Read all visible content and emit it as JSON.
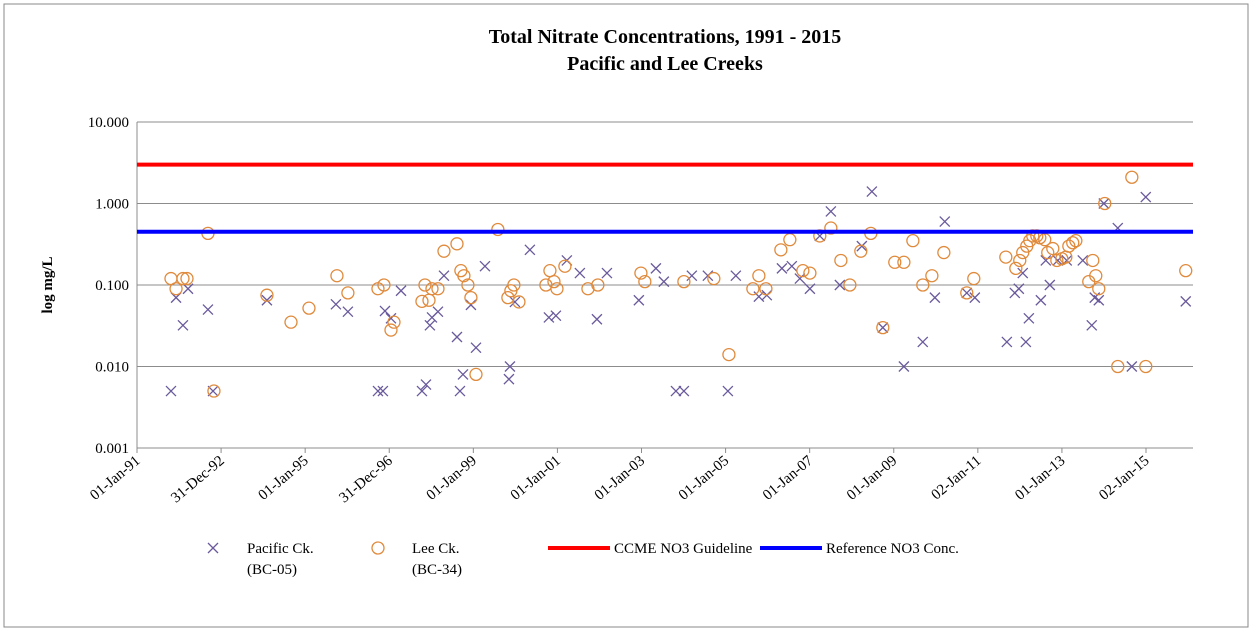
{
  "chart_data": {
    "type": "scatter",
    "title": "Total Nitrate Concentrations, 1991 - 2015",
    "subtitle": "Pacific and Lee Creeks",
    "y_label": "log mg/L",
    "y_log": true,
    "grid": true,
    "legend": "bottom",
    "xlim": [
      33239,
      42407
    ],
    "xticks": [
      {
        "value": 33239,
        "label": "01-Jan-91"
      },
      {
        "value": 33969,
        "label": "31-Dec-92"
      },
      {
        "value": 34699,
        "label": "01-Jan-95"
      },
      {
        "value": 35429,
        "label": "31-Dec-96"
      },
      {
        "value": 36159,
        "label": "01-Jan-99"
      },
      {
        "value": 36889,
        "label": "01-Jan-01"
      },
      {
        "value": 37619,
        "label": "01-Jan-03"
      },
      {
        "value": 38349,
        "label": "01-Jan-05"
      },
      {
        "value": 39079,
        "label": "01-Jan-07"
      },
      {
        "value": 39809,
        "label": "01-Jan-09"
      },
      {
        "value": 40539,
        "label": "02-Jan-11"
      },
      {
        "value": 41269,
        "label": "01-Jan-13"
      },
      {
        "value": 41999,
        "label": "02-Jan-15"
      }
    ],
    "ylim": [
      0.001,
      10
    ],
    "yticks": [
      {
        "value": 0.001,
        "label": "0.001"
      },
      {
        "value": 0.01,
        "label": "0.010"
      },
      {
        "value": 0.1,
        "label": "0.100"
      },
      {
        "value": 1,
        "label": "1.000"
      },
      {
        "value": 10,
        "label": "10.000"
      }
    ],
    "series": [
      {
        "name": "Pacific Ck.\n(BC-05)",
        "type": "scatter",
        "marker": "x",
        "color": "#6a5a9c",
        "x": [
          33534,
          33578,
          33638,
          33682,
          33855,
          33899,
          34367,
          34966,
          35070,
          35331,
          35374,
          35392,
          35444,
          35531,
          35713,
          35748,
          35782,
          35800,
          35852,
          35904,
          36017,
          36043,
          36069,
          36138,
          36182,
          36260,
          36468,
          36477,
          36520,
          36650,
          36815,
          36876,
          36971,
          37084,
          37232,
          37319,
          37596,
          37744,
          37813,
          37918,
          37987,
          38056,
          38195,
          38369,
          38438,
          38638,
          38707,
          38838,
          38924,
          38994,
          39081,
          39167,
          39263,
          39341,
          39532,
          39619,
          39714,
          39897,
          40061,
          40166,
          40252,
          40443,
          40513,
          40791,
          40860,
          40895,
          40929,
          40956,
          40982,
          41086,
          41129,
          41164,
          41233,
          41311,
          41450,
          41528,
          41554,
          41589,
          41633,
          41754,
          41876,
          41997,
          42344
        ],
        "values": [
          0.005,
          0.07,
          0.032,
          0.09,
          0.05,
          0.005,
          0.065,
          0.058,
          0.047,
          0.005,
          0.005,
          0.048,
          0.039,
          0.085,
          0.005,
          0.006,
          0.032,
          0.04,
          0.047,
          0.13,
          0.023,
          0.005,
          0.008,
          0.057,
          0.017,
          0.17,
          0.007,
          0.01,
          0.062,
          0.27,
          0.04,
          0.042,
          0.2,
          0.14,
          0.038,
          0.14,
          0.065,
          0.16,
          0.11,
          0.005,
          0.005,
          0.13,
          0.13,
          0.005,
          0.13,
          0.072,
          0.075,
          0.16,
          0.17,
          0.12,
          0.09,
          0.4,
          0.8,
          0.1,
          0.3,
          1.4,
          0.03,
          0.01,
          0.02,
          0.07,
          0.6,
          0.08,
          0.07,
          0.02,
          0.08,
          0.09,
          0.14,
          0.02,
          0.039,
          0.065,
          0.2,
          0.1,
          0.2,
          0.2,
          0.2,
          0.032,
          0.07,
          0.065,
          1.0,
          0.5,
          0.01,
          1.2,
          0.063
        ]
      },
      {
        "name": "Lee Ck.\n(BC-34)",
        "type": "scatter",
        "marker": "circle",
        "color": "#e08a3c",
        "x": [
          33534,
          33578,
          33638,
          33673,
          33855,
          33907,
          34367,
          34576,
          34732,
          34975,
          35070,
          35331,
          35383,
          35444,
          35470,
          35713,
          35739,
          35774,
          35800,
          35852,
          35904,
          36017,
          36051,
          36077,
          36112,
          36138,
          36182,
          36372,
          36459,
          36485,
          36511,
          36555,
          36789,
          36824,
          36859,
          36885,
          36954,
          37154,
          37240,
          37614,
          37648,
          37987,
          38247,
          38378,
          38586,
          38638,
          38699,
          38829,
          38907,
          39020,
          39081,
          39167,
          39263,
          39350,
          39428,
          39523,
          39610,
          39714,
          39818,
          39897,
          39975,
          40061,
          40140,
          40244,
          40443,
          40504,
          40782,
          40869,
          40903,
          40929,
          40964,
          40990,
          41016,
          41051,
          41077,
          41120,
          41146,
          41190,
          41225,
          41268,
          41303,
          41329,
          41363,
          41390,
          41502,
          41537,
          41563,
          41589,
          41641,
          41754,
          41876,
          41997,
          42344
        ],
        "values": [
          0.12,
          0.09,
          0.12,
          0.12,
          0.43,
          0.005,
          0.075,
          0.035,
          0.052,
          0.13,
          0.08,
          0.09,
          0.1,
          0.028,
          0.035,
          0.063,
          0.1,
          0.065,
          0.09,
          0.09,
          0.26,
          0.32,
          0.15,
          0.13,
          0.1,
          0.07,
          0.008,
          0.48,
          0.07,
          0.085,
          0.1,
          0.062,
          0.1,
          0.15,
          0.11,
          0.09,
          0.17,
          0.09,
          0.1,
          0.14,
          0.11,
          0.11,
          0.12,
          0.014,
          0.09,
          0.13,
          0.09,
          0.27,
          0.36,
          0.15,
          0.14,
          0.4,
          0.5,
          0.2,
          0.1,
          0.26,
          0.43,
          0.03,
          0.19,
          0.19,
          0.35,
          0.1,
          0.13,
          0.25,
          0.08,
          0.12,
          0.22,
          0.16,
          0.2,
          0.25,
          0.3,
          0.35,
          0.4,
          0.4,
          0.38,
          0.36,
          0.25,
          0.28,
          0.2,
          0.21,
          0.22,
          0.3,
          0.33,
          0.35,
          0.11,
          0.2,
          0.13,
          0.09,
          1.0,
          0.01,
          2.1,
          0.01,
          0.15
        ]
      },
      {
        "name": "CCME NO3 Guideline",
        "type": "line",
        "color": "#ff0000",
        "x": [
          33239,
          42407
        ],
        "values": [
          3,
          3
        ]
      },
      {
        "name": "Reference NO3 Conc.",
        "type": "line",
        "color": "#0000ff",
        "x": [
          33239,
          42407
        ],
        "values": [
          0.45,
          0.45
        ]
      }
    ]
  }
}
